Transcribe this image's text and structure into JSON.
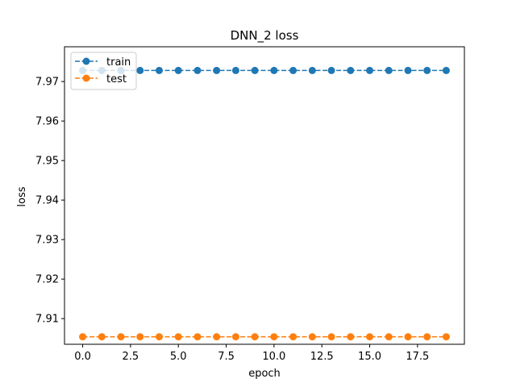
{
  "chart_data": {
    "type": "line",
    "title": "DNN_2 loss",
    "xlabel": "epoch",
    "ylabel": "loss",
    "xlim": [
      -0.95,
      19.95
    ],
    "ylim": [
      7.9035,
      7.9788
    ],
    "xticks": [
      0.0,
      2.5,
      5.0,
      7.5,
      10.0,
      12.5,
      15.0,
      17.5
    ],
    "xtick_labels": [
      "0.0",
      "2.5",
      "5.0",
      "7.5",
      "10.0",
      "12.5",
      "15.0",
      "17.5"
    ],
    "yticks": [
      7.91,
      7.92,
      7.93,
      7.94,
      7.95,
      7.96,
      7.97
    ],
    "ytick_labels": [
      "7.91",
      "7.92",
      "7.93",
      "7.94",
      "7.95",
      "7.96",
      "7.97"
    ],
    "grid": false,
    "legend_position": "top-left",
    "x": [
      0,
      1,
      2,
      3,
      4,
      5,
      6,
      7,
      8,
      9,
      10,
      11,
      12,
      13,
      14,
      15,
      16,
      17,
      18,
      19
    ],
    "series": [
      {
        "name": "train",
        "color": "#1f77b4",
        "values": [
          7.9728,
          7.9728,
          7.9728,
          7.9728,
          7.9728,
          7.9728,
          7.9728,
          7.9728,
          7.9728,
          7.9728,
          7.9728,
          7.9728,
          7.9728,
          7.9728,
          7.9728,
          7.9728,
          7.9728,
          7.9728,
          7.9728,
          7.9728
        ]
      },
      {
        "name": "test",
        "color": "#ff7f0e",
        "values": [
          7.9054,
          7.9054,
          7.9054,
          7.9054,
          7.9054,
          7.9054,
          7.9054,
          7.9054,
          7.9054,
          7.9054,
          7.9054,
          7.9054,
          7.9054,
          7.9054,
          7.9054,
          7.9054,
          7.9054,
          7.9054,
          7.9054,
          7.9054
        ]
      }
    ]
  }
}
